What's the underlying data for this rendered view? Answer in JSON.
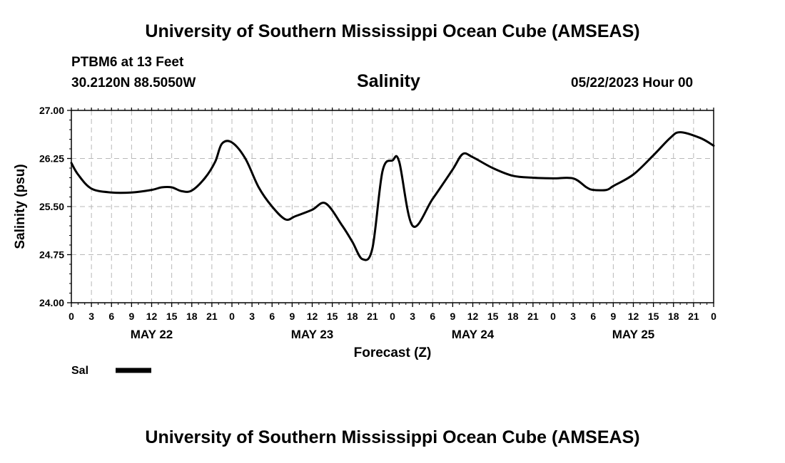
{
  "header": {
    "title": "University of Southern Mississippi Ocean Cube (AMSEAS)",
    "station": "PTBM6 at 13 Feet",
    "coords": "30.2120N  88.5050W",
    "datetime": "05/22/2023 Hour 00",
    "footer_title": "University of Southern Mississippi Ocean Cube (AMSEAS)"
  },
  "chart_data": {
    "type": "line",
    "title": "Salinity",
    "xlabel": "Forecast (Z)",
    "ylabel": "Salinity (psu)",
    "ylim": [
      24.0,
      27.0
    ],
    "xlim": [
      0,
      96
    ],
    "y_ticks": [
      "24.00",
      "24.75",
      "25.50",
      "26.25",
      "27.00"
    ],
    "y_tick_values": [
      24.0,
      24.75,
      25.5,
      26.25,
      27.0
    ],
    "x_tick_labels": [
      "0",
      "3",
      "6",
      "9",
      "12",
      "15",
      "18",
      "21",
      "0",
      "3",
      "6",
      "9",
      "12",
      "15",
      "18",
      "21",
      "0",
      "3",
      "6",
      "9",
      "12",
      "15",
      "18",
      "21",
      "0",
      "3",
      "6",
      "9",
      "12",
      "15",
      "18",
      "21",
      "0"
    ],
    "day_labels": [
      {
        "label": "MAY 22",
        "hour": 12
      },
      {
        "label": "MAY 23",
        "hour": 36
      },
      {
        "label": "MAY 24",
        "hour": 60
      },
      {
        "label": "MAY 25",
        "hour": 84
      }
    ],
    "grid": true,
    "legend_position": "bottom-left",
    "series": [
      {
        "name": "Sal",
        "color": "#000000",
        "x": [
          0,
          1,
          3,
          6,
          9,
          12,
          13.5,
          15,
          16.5,
          18,
          20,
          21.5,
          22.5,
          24,
          26,
          28,
          30,
          32,
          33.5,
          36,
          38,
          40.5,
          42,
          43.5,
          45,
          46.5,
          48,
          49,
          51,
          54,
          57,
          58.5,
          60,
          63,
          66,
          69,
          72,
          75,
          77,
          78,
          80,
          81,
          84,
          87,
          89.5,
          91,
          94,
          96
        ],
        "values": [
          26.18,
          26.0,
          25.78,
          25.72,
          25.72,
          25.76,
          25.8,
          25.8,
          25.74,
          25.75,
          25.95,
          26.2,
          26.48,
          26.5,
          26.25,
          25.8,
          25.5,
          25.3,
          25.35,
          25.45,
          25.55,
          25.2,
          24.95,
          24.68,
          24.85,
          26.05,
          26.22,
          26.2,
          25.2,
          25.62,
          26.08,
          26.32,
          26.27,
          26.1,
          25.98,
          25.95,
          25.94,
          25.94,
          25.8,
          25.76,
          25.76,
          25.82,
          26.0,
          26.3,
          26.57,
          26.66,
          26.57,
          26.45
        ]
      }
    ]
  }
}
